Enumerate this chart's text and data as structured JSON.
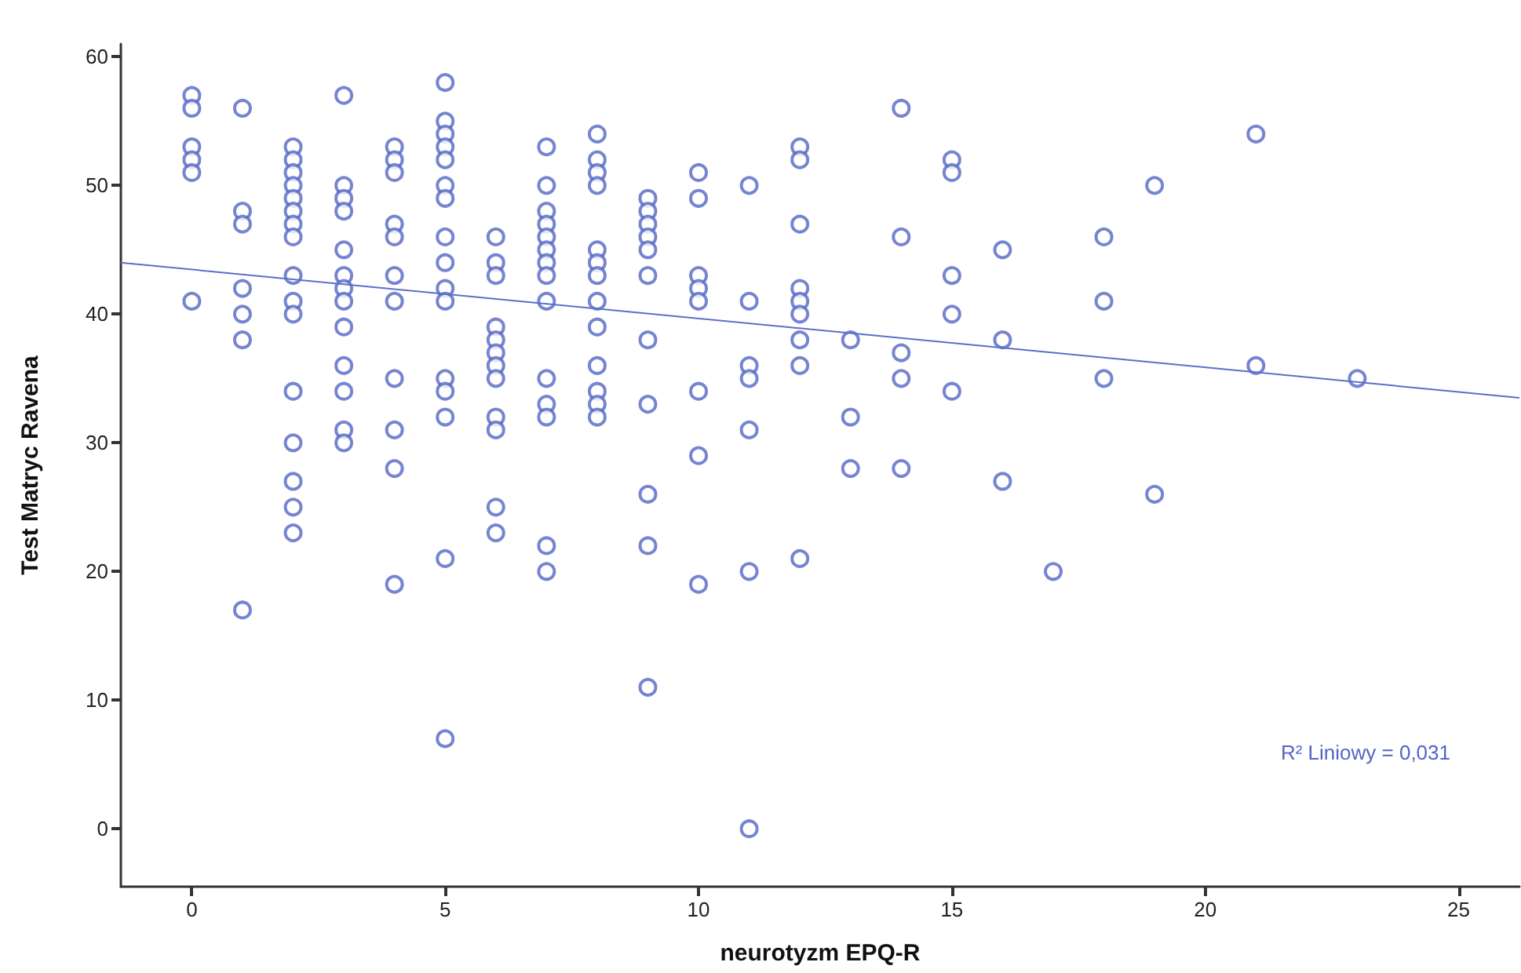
{
  "chart_data": {
    "type": "scatter",
    "xlabel": "neurotyzm EPQ-R",
    "ylabel": "Test Matryc Ravena",
    "xlim": [
      -1.4,
      26.2
    ],
    "ylim": [
      -4.5,
      61
    ],
    "xticks": [
      0,
      5,
      10,
      15,
      20,
      25
    ],
    "yticks": [
      0,
      10,
      20,
      30,
      40,
      50,
      60
    ],
    "annotations": [
      "R² Liniowy = 0,031"
    ],
    "series": [
      {
        "color": "#5366c4",
        "marker": "circle",
        "x": [
          0,
          0,
          0,
          0,
          0,
          0,
          1,
          1,
          1,
          1,
          1,
          1,
          1,
          2,
          2,
          2,
          2,
          2,
          2,
          2,
          2,
          2,
          2,
          2,
          2,
          2,
          2,
          2,
          2,
          3,
          3,
          3,
          3,
          3,
          3,
          3,
          3,
          3,
          3,
          3,
          3,
          3,
          4,
          4,
          4,
          4,
          4,
          4,
          4,
          4,
          4,
          4,
          4,
          5,
          5,
          5,
          5,
          5,
          5,
          5,
          5,
          5,
          5,
          5,
          5,
          5,
          5,
          5,
          5,
          6,
          6,
          6,
          6,
          6,
          6,
          6,
          6,
          6,
          6,
          6,
          6,
          7,
          7,
          7,
          7,
          7,
          7,
          7,
          7,
          7,
          7,
          7,
          7,
          7,
          7,
          8,
          8,
          8,
          8,
          8,
          8,
          8,
          8,
          8,
          8,
          8,
          8,
          8,
          9,
          9,
          9,
          9,
          9,
          9,
          9,
          9,
          9,
          9,
          9,
          10,
          10,
          10,
          10,
          10,
          10,
          10,
          10,
          11,
          11,
          11,
          11,
          11,
          11,
          11,
          12,
          12,
          12,
          12,
          12,
          12,
          12,
          12,
          12,
          13,
          13,
          13,
          14,
          14,
          14,
          14,
          14,
          15,
          15,
          15,
          15,
          15,
          16,
          16,
          16,
          17,
          18,
          18,
          18,
          19,
          19,
          21,
          21,
          23
        ],
        "values": [
          57,
          56,
          53,
          52,
          51,
          41,
          56,
          48,
          47,
          42,
          40,
          38,
          17,
          53,
          52,
          51,
          50,
          49,
          48,
          47,
          46,
          43,
          41,
          40,
          34,
          30,
          27,
          25,
          23,
          57,
          50,
          49,
          48,
          45,
          43,
          42,
          41,
          39,
          36,
          34,
          31,
          30,
          53,
          52,
          51,
          47,
          46,
          43,
          41,
          35,
          31,
          28,
          19,
          58,
          55,
          54,
          53,
          52,
          50,
          49,
          46,
          44,
          42,
          41,
          35,
          34,
          32,
          21,
          7,
          46,
          44,
          43,
          39,
          38,
          37,
          36,
          35,
          32,
          31,
          25,
          23,
          53,
          50,
          48,
          47,
          46,
          45,
          44,
          43,
          41,
          35,
          33,
          32,
          22,
          20,
          54,
          52,
          51,
          50,
          45,
          44,
          43,
          41,
          39,
          36,
          34,
          33,
          32,
          49,
          48,
          47,
          46,
          45,
          43,
          38,
          33,
          26,
          22,
          11,
          51,
          49,
          43,
          42,
          41,
          34,
          29,
          19,
          50,
          41,
          36,
          35,
          31,
          20,
          0,
          53,
          52,
          47,
          42,
          41,
          40,
          38,
          36,
          21,
          38,
          32,
          28,
          56,
          46,
          37,
          35,
          28,
          52,
          51,
          43,
          40,
          34,
          45,
          38,
          27,
          20,
          46,
          41,
          35,
          50,
          26,
          54,
          36,
          35
        ]
      },
      {
        "type": "line",
        "color": "#5b6fc9",
        "marker": "none",
        "line_style": "solid",
        "x": [
          -1.4,
          26.2
        ],
        "values": [
          44.0,
          33.5
        ]
      }
    ]
  }
}
